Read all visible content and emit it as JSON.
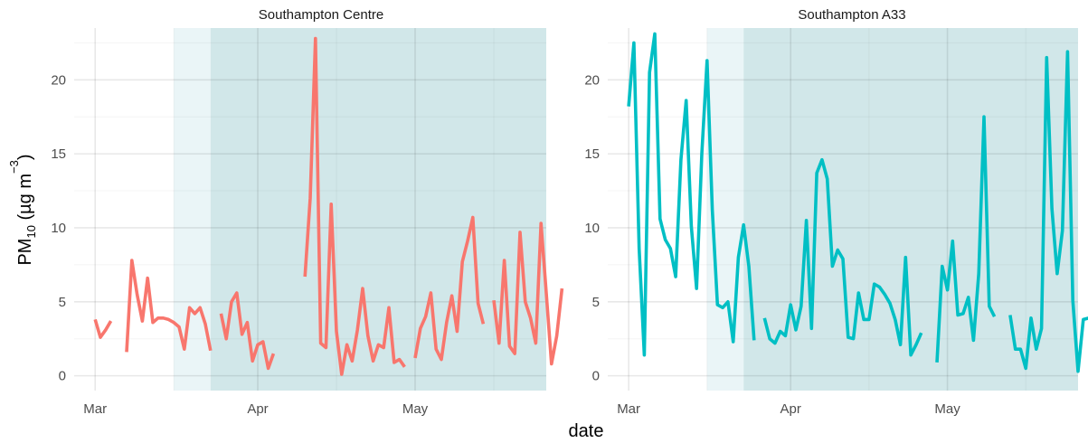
{
  "chart_data": [
    {
      "type": "line",
      "title": "Southampton Centre",
      "xlabel": "date",
      "ylabel": "PM10 (µg m−3)",
      "ylabel_parts": {
        "main": "PM",
        "sub": "10",
        "unit_open": " (µg m",
        "sup": "−3",
        "unit_close": ")"
      },
      "x_ticks": [
        {
          "label": "Mar",
          "date": "2020-03-01"
        },
        {
          "label": "Apr",
          "date": "2020-04-01"
        },
        {
          "label": "May",
          "date": "2020-05-01"
        }
      ],
      "y_ticks": [
        0,
        5,
        10,
        15,
        20
      ],
      "ylim": [
        -1,
        23.5
      ],
      "xlim": [
        "2020-02-26",
        "2020-05-26"
      ],
      "grid": true,
      "color": "#F8766D",
      "shaded_periods": [
        {
          "start": "2020-03-16",
          "end": "2020-03-23",
          "color": "#eaf5f7"
        },
        {
          "start": "2020-03-23",
          "end": "2020-05-26",
          "color": "#d1e7e9"
        }
      ],
      "series": [
        {
          "start_date": "2020-03-01",
          "values": [
            3.8,
            2.6,
            3.1,
            3.7,
            null,
            null,
            1.6,
            7.8,
            5.5,
            3.7,
            6.6,
            3.6,
            3.9,
            3.9,
            3.8,
            3.6,
            3.3,
            1.8,
            4.6,
            4.2,
            4.6,
            3.5,
            1.7,
            null,
            4.2,
            2.5,
            5.0,
            5.6,
            2.8,
            3.6,
            1.0,
            2.1,
            2.3,
            0.5,
            1.5,
            null,
            null,
            null,
            null,
            null,
            6.7,
            12.0,
            22.8,
            2.2,
            1.9,
            11.6,
            3.0,
            0.1,
            2.1,
            1.0,
            3.1,
            5.9,
            2.7,
            1.0,
            2.1,
            1.9,
            4.6,
            0.9,
            1.1,
            0.6,
            null,
            1.2,
            3.2,
            4.0,
            5.6,
            1.8,
            1.1,
            3.6,
            5.4,
            3.0,
            7.7,
            9.1,
            10.7,
            4.9,
            3.5,
            null,
            5.1,
            2.2,
            7.8,
            2.0,
            1.5,
            9.7,
            5.0,
            3.9,
            2.2,
            10.3,
            5.6,
            0.8,
            2.7,
            5.9
          ]
        }
      ]
    },
    {
      "type": "line",
      "title": "Southampton A33",
      "xlabel": "date",
      "x_ticks": [
        {
          "label": "Mar",
          "date": "2020-03-01"
        },
        {
          "label": "Apr",
          "date": "2020-04-01"
        },
        {
          "label": "May",
          "date": "2020-05-01"
        }
      ],
      "y_ticks": [
        0,
        5,
        10,
        15,
        20
      ],
      "ylim": [
        -1,
        23.5
      ],
      "xlim": [
        "2020-02-26",
        "2020-05-26"
      ],
      "grid": true,
      "color": "#00BFC4",
      "shaded_periods": [
        {
          "start": "2020-03-16",
          "end": "2020-03-23",
          "color": "#eaf5f7"
        },
        {
          "start": "2020-03-23",
          "end": "2020-05-26",
          "color": "#d1e7e9"
        }
      ],
      "series": [
        {
          "start_date": "2020-03-01",
          "values": [
            18.2,
            22.5,
            8.6,
            1.4,
            20.5,
            23.1,
            10.6,
            9.2,
            8.6,
            6.7,
            14.6,
            18.6,
            10.1,
            5.9,
            15.0,
            21.3,
            11.2,
            4.8,
            4.6,
            5.0,
            2.3,
            8.0,
            10.2,
            7.4,
            2.4,
            null,
            3.9,
            2.5,
            2.2,
            3.0,
            2.7,
            4.8,
            3.1,
            4.7,
            10.5,
            3.2,
            13.7,
            14.6,
            13.3,
            7.4,
            8.5,
            7.9,
            2.6,
            2.5,
            5.6,
            3.8,
            3.8,
            6.2,
            6.0,
            5.5,
            4.9,
            3.8,
            2.1,
            8.0,
            1.4,
            2.1,
            2.9,
            null,
            null,
            0.9,
            7.4,
            5.8,
            9.1,
            4.1,
            4.2,
            5.3,
            2.4,
            6.9,
            17.5,
            4.7,
            4.0,
            null,
            null,
            4.1,
            1.8,
            1.8,
            0.5,
            3.9,
            1.8,
            3.2,
            21.5,
            11.3,
            6.9,
            9.8,
            21.9,
            5.1,
            0.3,
            3.8,
            3.9
          ]
        }
      ]
    }
  ]
}
